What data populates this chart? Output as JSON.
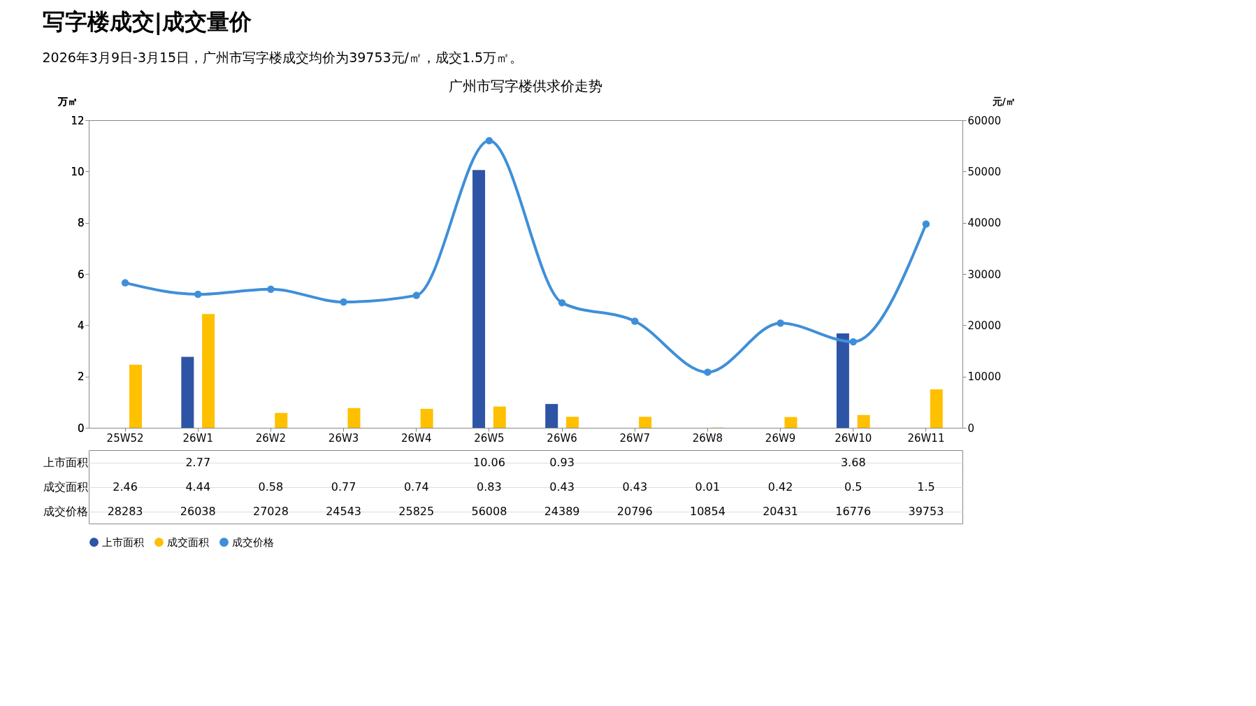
{
  "chart_data": {
    "type": "bar",
    "title": "写字楼成交|成交量价",
    "subtitle": "2026年3月9日-3月15日，广州市写字楼成交均价为39753元/㎡，成交1.5万㎡。",
    "annotations": [
      "广州市写字楼供求价走势"
    ],
    "ylabel": "万㎡",
    "y2label": "元/㎡",
    "categories": [
      "25W52",
      "26W1",
      "26W2",
      "26W3",
      "26W4",
      "26W5",
      "26W6",
      "26W7",
      "26W8",
      "26W9",
      "26W10",
      "26W11"
    ],
    "series": [
      {
        "name": "上市面积",
        "color": "#2e54a6",
        "values": [
          null,
          2.77,
          null,
          null,
          null,
          10.06,
          0.93,
          null,
          null,
          null,
          3.68,
          null
        ]
      },
      {
        "name": "成交面积",
        "color": "#ffc000",
        "values": [
          2.46,
          4.44,
          0.58,
          0.77,
          0.74,
          0.83,
          0.43,
          0.43,
          0.01,
          0.42,
          0.5,
          1.5
        ]
      },
      {
        "name": "成交价格",
        "color": "#3f8fd8",
        "type": "line",
        "axis": "y2",
        "values": [
          28283,
          26038,
          27028,
          24543,
          25825,
          56008,
          24389,
          20796,
          10854,
          20431,
          16776,
          39753
        ]
      }
    ],
    "ylim": [
      0,
      12
    ],
    "yticks": [
      0,
      2,
      4,
      6,
      8,
      10,
      12
    ],
    "y2lim": [
      0,
      60000
    ],
    "y2ticks": [
      0,
      10000,
      20000,
      30000,
      40000,
      50000,
      60000
    ],
    "data_labels": true,
    "legend": "bottom",
    "marker": "circle",
    "line_style": "solid"
  }
}
